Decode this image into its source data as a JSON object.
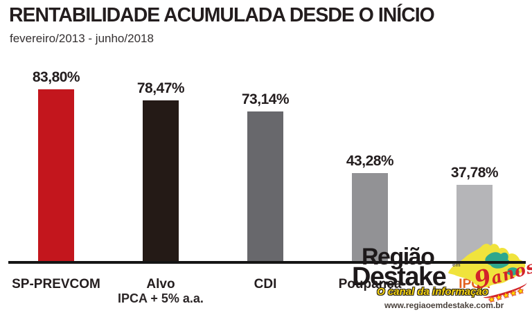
{
  "header": {
    "title": "RENTABILIDADE ACUMULADA DESDE O INÍCIO",
    "subtitle": "fevereiro/2013 - junho/2018"
  },
  "chart_data": {
    "type": "bar",
    "title": "RENTABILIDADE ACUMULADA DESDE O INÍCIO",
    "subtitle": "fevereiro/2013 - junho/2018",
    "unit": "%",
    "ylim": [
      0,
      90
    ],
    "grid": false,
    "legend": "none",
    "baseline_color": "#151515",
    "categories": [
      "SP-PREVCOM",
      "Alvo",
      "CDI",
      "Poupança",
      "IPCA"
    ],
    "values": [
      83.8,
      78.47,
      73.14,
      43.28,
      37.78
    ],
    "bars": [
      {
        "label": "SP-PREVCOM",
        "sublabel": "",
        "value": 83.8,
        "display_value": "83,80%",
        "color": "#c3161d",
        "label_color": "#231d1e"
      },
      {
        "label": "Alvo",
        "sublabel": "IPCA + 5% a.a.",
        "value": 78.47,
        "display_value": "78,47%",
        "color": "#241a16",
        "label_color": "#231d1e"
      },
      {
        "label": "CDI",
        "sublabel": "",
        "value": 73.14,
        "display_value": "73,14%",
        "color": "#68686c",
        "label_color": "#231d1e"
      },
      {
        "label": "Poupança",
        "sublabel": "",
        "value": 43.28,
        "display_value": "43,28%",
        "color": "#929295",
        "label_color": "#231d1e"
      },
      {
        "label": "IPCA",
        "sublabel": "",
        "value": 37.78,
        "display_value": "37,78%",
        "color": "#b5b5b8",
        "label_color": "#e2611f"
      }
    ]
  },
  "watermark": {
    "brand_top": "Região",
    "brand_em": "em",
    "brand_bottom": "Destake",
    "tagline": "O canal da informação",
    "url": "www.regiaoemdestake.com.br",
    "anniversary_number": "9",
    "anniversary_word": "anos",
    "stars": "★★★★★",
    "colors": {
      "map_yellow": "#f0e33c",
      "map_teal": "#2fa78d",
      "accent_red": "#d2232a",
      "brand_black": "#1d191a",
      "tagline_yellow": "#f6d413"
    }
  }
}
